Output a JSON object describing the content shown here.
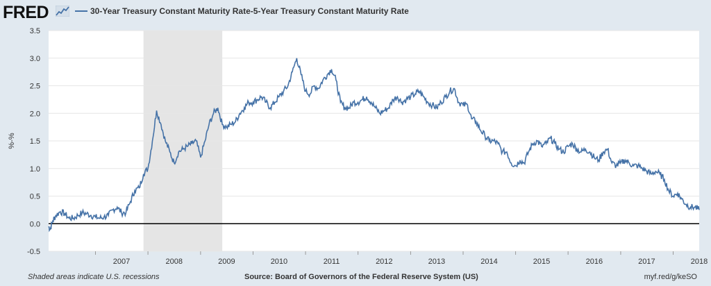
{
  "header": {
    "logo_text": "FRED",
    "legend_label": "30-Year Treasury Constant Maturity Rate-5-Year Treasury Constant Maturity Rate"
  },
  "footer": {
    "recession_note": "Shaded areas indicate U.S. recessions",
    "source": "Source: Board of Governors of the Federal Reserve System (US)",
    "short_url": "myf.red/g/keSO"
  },
  "colors": {
    "series": "#4572a7",
    "recession": "#e5e5e5",
    "background": "#e1e9f0",
    "zero_line": "#000000"
  },
  "icons": {
    "logo_graph": "line-chart-icon"
  },
  "chart_data": {
    "type": "line",
    "title": "",
    "xlabel": "",
    "ylabel": "%-%",
    "ylim": [
      -0.5,
      3.5
    ],
    "xlim": [
      "2006-02-09",
      "2018-07-01"
    ],
    "yticks": [
      "-0.5",
      "0.0",
      "0.5",
      "1.0",
      "1.5",
      "2.0",
      "2.5",
      "3.0",
      "3.5"
    ],
    "xticks": [
      "2007",
      "2008",
      "2009",
      "2010",
      "2011",
      "2012",
      "2013",
      "2014",
      "2015",
      "2016",
      "2017",
      "2018"
    ],
    "grid": true,
    "zero_line": true,
    "recessions": [
      {
        "start": "2007-12-01",
        "end": "2009-06-01"
      }
    ],
    "series": [
      {
        "name": "30-Year Treasury Constant Maturity Rate-5-Year Treasury Constant Maturity Rate",
        "points": [
          [
            "2006-02-09",
            -0.05
          ],
          [
            "2006-02-20",
            -0.1
          ],
          [
            "2006-03-10",
            0.05
          ],
          [
            "2006-04-01",
            0.15
          ],
          [
            "2006-05-01",
            0.22
          ],
          [
            "2006-06-01",
            0.18
          ],
          [
            "2006-07-01",
            0.1
          ],
          [
            "2006-08-01",
            0.1
          ],
          [
            "2006-09-01",
            0.15
          ],
          [
            "2006-10-01",
            0.2
          ],
          [
            "2006-11-01",
            0.18
          ],
          [
            "2006-12-01",
            0.15
          ],
          [
            "2007-01-01",
            0.12
          ],
          [
            "2007-02-01",
            0.1
          ],
          [
            "2007-03-01",
            0.12
          ],
          [
            "2007-04-01",
            0.15
          ],
          [
            "2007-05-01",
            0.25
          ],
          [
            "2007-06-01",
            0.3
          ],
          [
            "2007-07-01",
            0.2
          ],
          [
            "2007-08-01",
            0.2
          ],
          [
            "2007-09-01",
            0.4
          ],
          [
            "2007-10-01",
            0.6
          ],
          [
            "2007-11-01",
            0.65
          ],
          [
            "2007-12-01",
            0.9
          ],
          [
            "2008-01-01",
            1.0
          ],
          [
            "2008-02-01",
            1.5
          ],
          [
            "2008-03-01",
            2.05
          ],
          [
            "2008-04-01",
            1.8
          ],
          [
            "2008-05-01",
            1.5
          ],
          [
            "2008-06-01",
            1.3
          ],
          [
            "2008-07-01",
            1.1
          ],
          [
            "2008-08-01",
            1.3
          ],
          [
            "2008-09-01",
            1.35
          ],
          [
            "2008-10-01",
            1.4
          ],
          [
            "2008-11-01",
            1.45
          ],
          [
            "2008-12-01",
            1.5
          ],
          [
            "2009-01-01",
            1.2
          ],
          [
            "2009-02-01",
            1.5
          ],
          [
            "2009-03-01",
            1.8
          ],
          [
            "2009-04-01",
            2.0
          ],
          [
            "2009-05-01",
            2.1
          ],
          [
            "2009-06-01",
            1.8
          ],
          [
            "2009-07-01",
            1.75
          ],
          [
            "2009-08-01",
            1.8
          ],
          [
            "2009-09-01",
            1.85
          ],
          [
            "2009-10-01",
            2.0
          ],
          [
            "2009-11-01",
            2.1
          ],
          [
            "2009-12-01",
            2.2
          ],
          [
            "2010-01-01",
            2.2
          ],
          [
            "2010-02-01",
            2.25
          ],
          [
            "2010-03-01",
            2.3
          ],
          [
            "2010-04-01",
            2.2
          ],
          [
            "2010-05-01",
            2.1
          ],
          [
            "2010-06-01",
            2.2
          ],
          [
            "2010-07-01",
            2.3
          ],
          [
            "2010-08-01",
            2.4
          ],
          [
            "2010-09-01",
            2.5
          ],
          [
            "2010-10-01",
            2.75
          ],
          [
            "2010-11-01",
            3.0
          ],
          [
            "2010-12-01",
            2.7
          ],
          [
            "2011-01-01",
            2.4
          ],
          [
            "2011-02-01",
            2.35
          ],
          [
            "2011-03-01",
            2.5
          ],
          [
            "2011-04-01",
            2.45
          ],
          [
            "2011-05-01",
            2.6
          ],
          [
            "2011-06-01",
            2.7
          ],
          [
            "2011-07-01",
            2.8
          ],
          [
            "2011-08-01",
            2.6
          ],
          [
            "2011-09-01",
            2.2
          ],
          [
            "2011-10-01",
            2.1
          ],
          [
            "2011-11-01",
            2.1
          ],
          [
            "2011-12-01",
            2.2
          ],
          [
            "2012-01-01",
            2.2
          ],
          [
            "2012-02-01",
            2.25
          ],
          [
            "2012-03-01",
            2.3
          ],
          [
            "2012-04-01",
            2.2
          ],
          [
            "2012-05-01",
            2.1
          ],
          [
            "2012-06-01",
            2.0
          ],
          [
            "2012-07-01",
            2.05
          ],
          [
            "2012-08-01",
            2.1
          ],
          [
            "2012-09-01",
            2.25
          ],
          [
            "2012-10-01",
            2.3
          ],
          [
            "2012-11-01",
            2.2
          ],
          [
            "2012-12-01",
            2.25
          ],
          [
            "2013-01-01",
            2.3
          ],
          [
            "2013-02-01",
            2.35
          ],
          [
            "2013-03-01",
            2.4
          ],
          [
            "2013-04-01",
            2.3
          ],
          [
            "2013-05-01",
            2.2
          ],
          [
            "2013-06-01",
            2.15
          ],
          [
            "2013-07-01",
            2.1
          ],
          [
            "2013-08-01",
            2.2
          ],
          [
            "2013-09-01",
            2.3
          ],
          [
            "2013-10-01",
            2.4
          ],
          [
            "2013-11-01",
            2.45
          ],
          [
            "2013-12-01",
            2.2
          ],
          [
            "2014-01-01",
            2.15
          ],
          [
            "2014-02-01",
            2.15
          ],
          [
            "2014-03-01",
            1.9
          ],
          [
            "2014-04-01",
            1.85
          ],
          [
            "2014-05-01",
            1.7
          ],
          [
            "2014-06-01",
            1.6
          ],
          [
            "2014-07-01",
            1.5
          ],
          [
            "2014-08-01",
            1.5
          ],
          [
            "2014-09-01",
            1.45
          ],
          [
            "2014-10-01",
            1.3
          ],
          [
            "2014-11-01",
            1.3
          ],
          [
            "2014-12-01",
            1.1
          ],
          [
            "2015-01-01",
            1.05
          ],
          [
            "2015-02-01",
            1.15
          ],
          [
            "2015-03-01",
            1.1
          ],
          [
            "2015-04-01",
            1.3
          ],
          [
            "2015-05-01",
            1.45
          ],
          [
            "2015-06-01",
            1.5
          ],
          [
            "2015-07-01",
            1.4
          ],
          [
            "2015-08-01",
            1.45
          ],
          [
            "2015-09-01",
            1.55
          ],
          [
            "2015-10-01",
            1.45
          ],
          [
            "2015-11-01",
            1.35
          ],
          [
            "2015-12-01",
            1.3
          ],
          [
            "2016-01-01",
            1.4
          ],
          [
            "2016-02-01",
            1.45
          ],
          [
            "2016-03-01",
            1.35
          ],
          [
            "2016-04-01",
            1.3
          ],
          [
            "2016-05-01",
            1.35
          ],
          [
            "2016-06-01",
            1.3
          ],
          [
            "2016-07-01",
            1.2
          ],
          [
            "2016-08-01",
            1.15
          ],
          [
            "2016-09-01",
            1.3
          ],
          [
            "2016-10-01",
            1.35
          ],
          [
            "2016-11-01",
            1.1
          ],
          [
            "2016-12-01",
            1.05
          ],
          [
            "2017-01-01",
            1.1
          ],
          [
            "2017-02-01",
            1.15
          ],
          [
            "2017-03-01",
            1.1
          ],
          [
            "2017-04-01",
            1.05
          ],
          [
            "2017-05-01",
            1.05
          ],
          [
            "2017-06-01",
            1.0
          ],
          [
            "2017-07-01",
            0.95
          ],
          [
            "2017-08-01",
            0.9
          ],
          [
            "2017-09-01",
            0.95
          ],
          [
            "2017-10-01",
            0.9
          ],
          [
            "2017-11-01",
            0.8
          ],
          [
            "2017-12-01",
            0.6
          ],
          [
            "2018-01-01",
            0.5
          ],
          [
            "2018-02-01",
            0.55
          ],
          [
            "2018-03-01",
            0.45
          ],
          [
            "2018-04-01",
            0.35
          ],
          [
            "2018-05-01",
            0.3
          ],
          [
            "2018-06-01",
            0.3
          ],
          [
            "2018-07-01",
            0.25
          ]
        ]
      }
    ]
  }
}
